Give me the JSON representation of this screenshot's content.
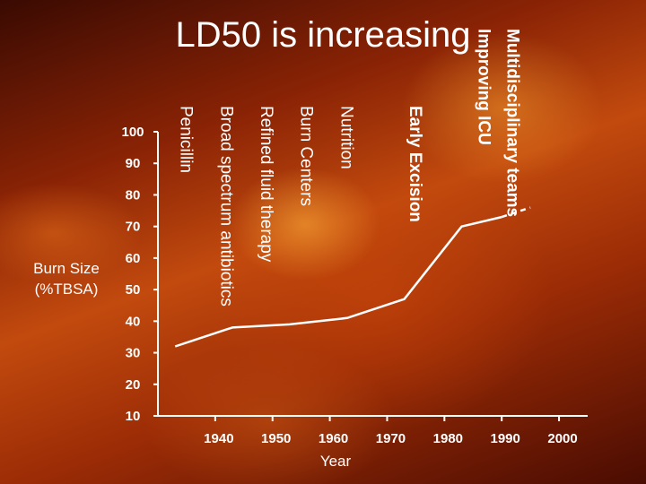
{
  "slide": {
    "title": "LD50 is increasing"
  },
  "chart_data": {
    "type": "line",
    "title": "LD50 is increasing",
    "xlabel": "Year",
    "ylabel": "Burn Size (%TBSA)",
    "xlim": [
      1930,
      2005
    ],
    "ylim": [
      10,
      100
    ],
    "x_ticks": [
      1940,
      1950,
      1960,
      1970,
      1980,
      1990,
      2000
    ],
    "y_ticks": [
      10,
      20,
      30,
      40,
      50,
      60,
      70,
      80,
      90,
      100
    ],
    "grid": false,
    "series": [
      {
        "x": [
          1933,
          1943,
          1953,
          1963,
          1973,
          1983,
          1990
        ],
        "y": [
          32,
          38,
          39,
          41,
          47,
          70,
          73
        ]
      }
    ],
    "projection": {
      "x": [
        1990,
        1995
      ],
      "y": [
        73,
        76
      ]
    },
    "annotations": [
      {
        "text": "Penicillin",
        "x": 1934,
        "bold": false
      },
      {
        "text": "Broad spectrum antibiotics",
        "x": 1941,
        "bold": false
      },
      {
        "text": "Refined fluid therapy",
        "x": 1948,
        "bold": false
      },
      {
        "text": "Burn Centers",
        "x": 1955,
        "bold": false
      },
      {
        "text": "Nutrition",
        "x": 1962,
        "bold": false
      },
      {
        "text": "Early Excision",
        "x": 1974,
        "bold": true
      },
      {
        "text": "Improving ICU",
        "x": 1986,
        "bold": true
      },
      {
        "text": "Multidisciplinary teams",
        "x": 1991,
        "bold": true
      }
    ]
  }
}
